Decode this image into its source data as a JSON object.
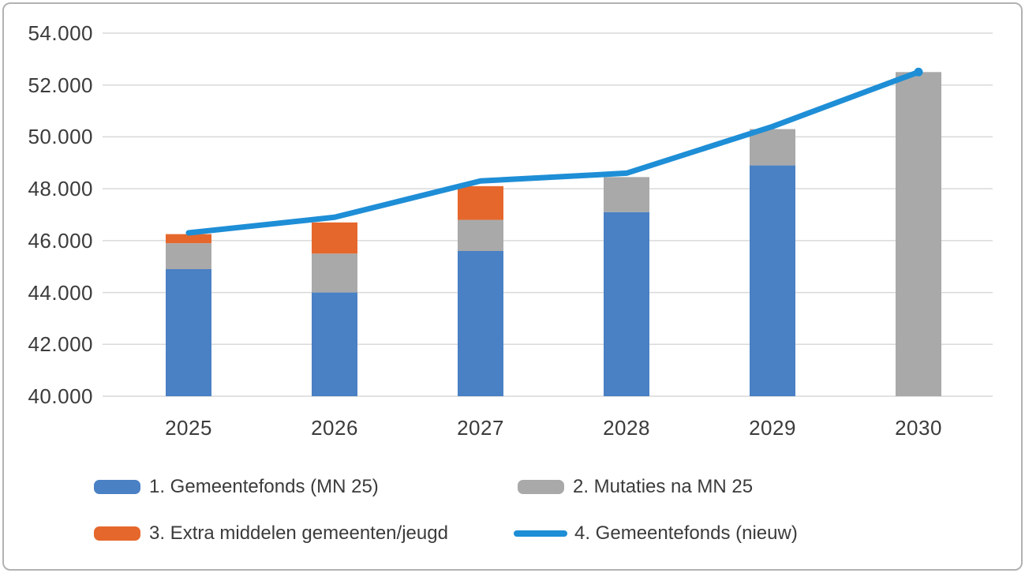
{
  "frame": {
    "background_color": "#ffffff",
    "border_color": "#b2b2b2"
  },
  "chart_data": {
    "type": "bar",
    "subtype": "stacked-bars-with-line-overlay",
    "title": "",
    "xlabel": "",
    "ylabel": "",
    "categories": [
      "2025",
      "2026",
      "2027",
      "2028",
      "2029",
      "2030"
    ],
    "y_axis": {
      "min": 40000,
      "max": 54000,
      "step": 2000,
      "tick_labels": [
        "40.000",
        "42.000",
        "44.000",
        "46.000",
        "48.000",
        "50.000",
        "52.000",
        "54.000"
      ],
      "grid": true,
      "gridline_color": "#d9d9d9"
    },
    "series": [
      {
        "name": "1. Gemeentefonds (MN 25)",
        "type": "bar",
        "color": "#4a80c4",
        "values": [
          44900,
          44000,
          45600,
          47100,
          48900,
          0
        ]
      },
      {
        "name": "2. Mutaties na MN 25",
        "type": "bar",
        "color": "#a9a9a9",
        "values": [
          1000,
          1500,
          1200,
          1350,
          1400,
          52500
        ]
      },
      {
        "name": "3. Extra middelen gemeenten/jeugd",
        "type": "bar",
        "color": "#e5672c",
        "values": [
          350,
          1200,
          1300,
          0,
          0,
          0
        ]
      },
      {
        "name": "4. Gemeentefonds (nieuw)",
        "type": "line",
        "color": "#1e8ed6",
        "values": [
          46300,
          46900,
          48300,
          48600,
          50400,
          52500
        ]
      }
    ],
    "stacked_bar_totals": [
      46250,
      46700,
      48100,
      48450,
      50300,
      52500
    ],
    "legend": {
      "position": "bottom",
      "items": [
        {
          "label": "1. Gemeentefonds (MN 25)",
          "swatch": "bar",
          "color": "#4a80c4"
        },
        {
          "label": "2. Mutaties na MN 25",
          "swatch": "bar",
          "color": "#a9a9a9"
        },
        {
          "label": "3. Extra middelen gemeenten/jeugd",
          "swatch": "bar",
          "color": "#e5672c"
        },
        {
          "label": "4. Gemeentefonds (nieuw)",
          "swatch": "line",
          "color": "#1e8ed6"
        }
      ]
    }
  }
}
